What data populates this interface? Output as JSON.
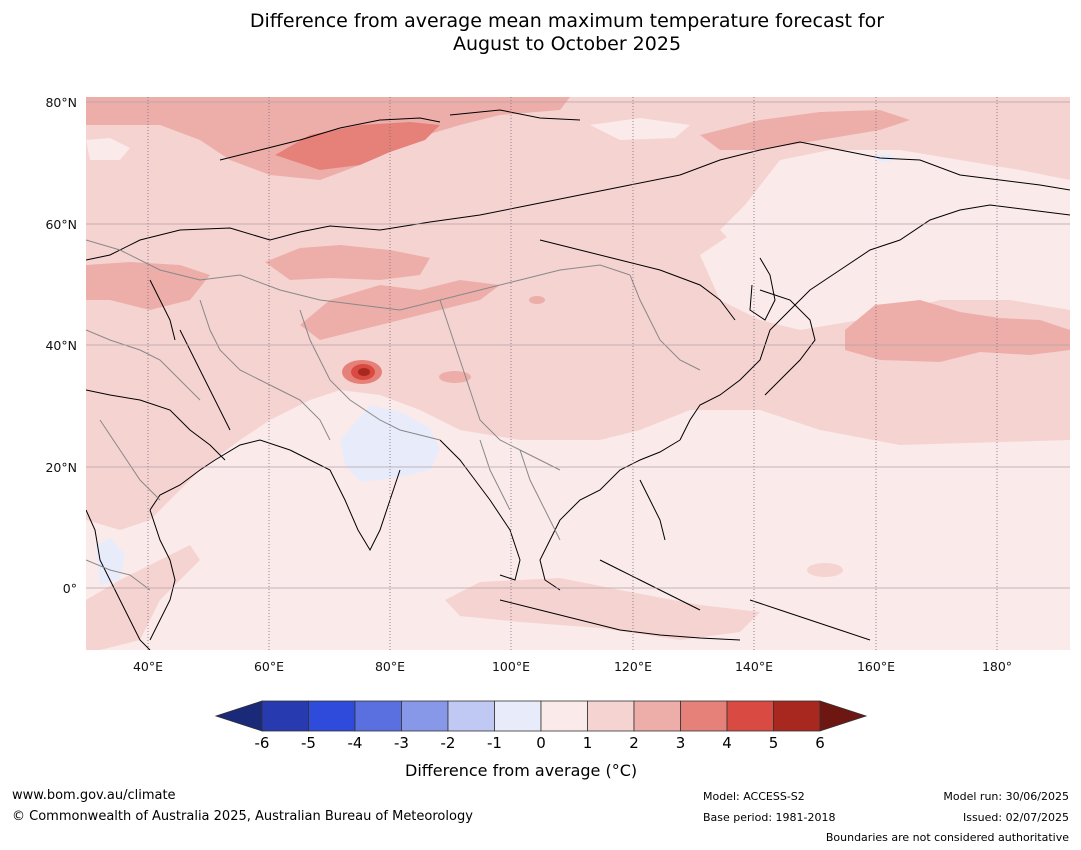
{
  "title": {
    "line1": "Difference from average mean maximum temperature forecast for",
    "line2": "August to October 2025"
  },
  "map": {
    "lat_labels": [
      "80°N",
      "60°N",
      "40°N",
      "20°N",
      "0°"
    ],
    "lon_labels": [
      "40°E",
      "60°E",
      "80°E",
      "100°E",
      "120°E",
      "140°E",
      "160°E",
      "180°"
    ]
  },
  "colorbar": {
    "title": "Difference from average (°C)",
    "ticks": [
      "-6",
      "-5",
      "-4",
      "-3",
      "-2",
      "-1",
      "0",
      "1",
      "2",
      "3",
      "4",
      "5",
      "6"
    ],
    "colors": [
      "#1a2a78",
      "#283ab0",
      "#2f4bdc",
      "#5a70e0",
      "#8898e8",
      "#c0c8f4",
      "#e8ecfa",
      "#fbeaea",
      "#f5d3d1",
      "#edaeaa",
      "#e6817a",
      "#d84a42",
      "#a8281f",
      "#6e1712"
    ]
  },
  "footer": {
    "website": "www.bom.gov.au/climate",
    "copyright": "© Commonwealth of Australia 2025, Australian Bureau of Meteorology",
    "model": "Model: ACCESS-S2",
    "base_period": "Base period: 1981-2018",
    "model_run": "Model run: 30/06/2025",
    "issued": "Issued: 02/07/2025",
    "disclaimer": "Boundaries are not considered authoritative"
  }
}
